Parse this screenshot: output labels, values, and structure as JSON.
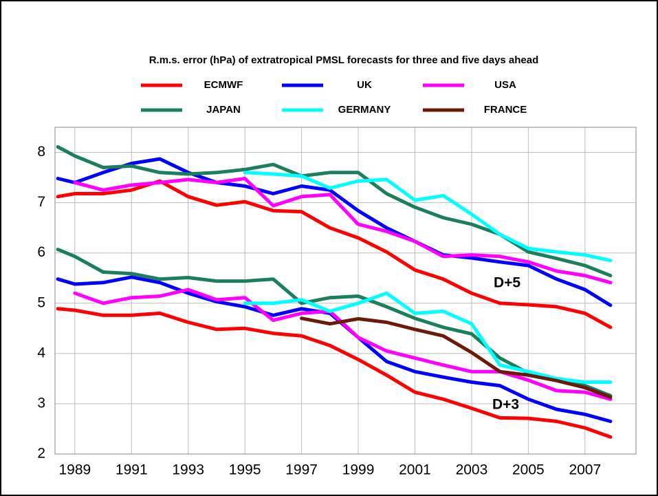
{
  "chart_data": {
    "type": "line",
    "title": "R.m.s. error (hPa) of extratropical PMSL forecasts for three and five days ahead",
    "annotations": [
      "D+5",
      "D+3"
    ],
    "x": [
      1988.4,
      1989,
      1990,
      1991,
      1992,
      1993,
      1994,
      1995,
      1996,
      1997,
      1998,
      1999,
      2000,
      2001,
      2002,
      2003,
      2004,
      2005,
      2006,
      2007,
      2007.9
    ],
    "xlim": [
      1988.3,
      2008.8
    ],
    "ylim": [
      2,
      8.5
    ],
    "xticks": [
      1989,
      1991,
      1993,
      1995,
      1997,
      1999,
      2001,
      2003,
      2005,
      2007
    ],
    "yticks": [
      2,
      3,
      4,
      5,
      6,
      7,
      8
    ],
    "grid": true,
    "series": [
      {
        "name": "ECMWF",
        "color": "#ff0000",
        "values": [
          [
            7.12,
            7.18,
            7.18,
            7.25,
            7.43,
            7.12,
            6.95,
            7.02,
            6.84,
            6.82,
            6.5,
            6.3,
            6.02,
            5.66,
            5.48,
            5.2,
            5.0,
            4.97,
            4.93,
            4.8,
            4.52
          ],
          [
            4.89,
            4.86,
            4.76,
            4.76,
            4.8,
            4.62,
            4.48,
            4.5,
            4.4,
            4.35,
            4.16,
            3.88,
            3.57,
            3.23,
            3.09,
            2.91,
            2.72,
            2.71,
            2.65,
            2.52,
            2.34
          ]
        ]
      },
      {
        "name": "UK",
        "color": "#0000ff",
        "values": [
          [
            7.48,
            7.4,
            7.6,
            7.78,
            7.87,
            7.6,
            7.4,
            7.33,
            7.18,
            7.33,
            7.25,
            6.84,
            6.5,
            6.23,
            5.96,
            5.9,
            5.82,
            5.75,
            5.48,
            5.27,
            4.96
          ],
          [
            5.48,
            5.38,
            5.41,
            5.52,
            5.41,
            5.2,
            5.03,
            4.93,
            4.76,
            4.89,
            4.8,
            4.32,
            3.84,
            3.64,
            3.53,
            3.43,
            3.36,
            3.09,
            2.89,
            2.79,
            2.65
          ]
        ]
      },
      {
        "name": "USA",
        "color": "#ff00ff",
        "values": [
          [
            null,
            7.4,
            7.25,
            7.35,
            7.4,
            7.46,
            7.4,
            7.48,
            6.94,
            7.12,
            7.16,
            6.57,
            6.43,
            6.23,
            5.93,
            5.96,
            5.93,
            5.82,
            5.64,
            5.55,
            5.41
          ],
          [
            null,
            5.2,
            5.0,
            5.11,
            5.14,
            5.27,
            5.07,
            5.11,
            4.66,
            4.8,
            4.84,
            4.32,
            4.05,
            3.91,
            3.77,
            3.64,
            3.64,
            3.47,
            3.26,
            3.23,
            3.09
          ]
        ]
      },
      {
        "name": "JAPAN",
        "color": "#1a7f5a",
        "values": [
          [
            8.11,
            7.93,
            7.7,
            7.73,
            7.6,
            7.57,
            7.6,
            7.66,
            7.76,
            7.53,
            7.6,
            7.6,
            7.18,
            6.91,
            6.7,
            6.57,
            6.37,
            6.02,
            5.89,
            5.75,
            5.55
          ],
          [
            6.07,
            5.93,
            5.62,
            5.59,
            5.48,
            5.51,
            5.44,
            5.44,
            5.48,
            5.0,
            5.11,
            5.14,
            4.93,
            4.7,
            4.52,
            4.39,
            3.91,
            3.61,
            3.5,
            3.36,
            3.16
          ]
        ]
      },
      {
        "name": "GERMANY",
        "color": "#00ffff",
        "values": [
          [
            null,
            null,
            null,
            null,
            null,
            null,
            null,
            7.6,
            7.57,
            7.53,
            7.29,
            7.43,
            7.46,
            7.05,
            7.14,
            6.77,
            6.37,
            6.09,
            6.02,
            5.96,
            5.85
          ],
          [
            null,
            null,
            null,
            null,
            null,
            null,
            null,
            5.0,
            5.0,
            5.07,
            4.84,
            5.0,
            5.2,
            4.8,
            4.84,
            4.59,
            3.77,
            3.64,
            3.5,
            3.43,
            3.43
          ]
        ]
      },
      {
        "name": "FRANCE",
        "color": "#6b1a0a",
        "values": [
          [
            null,
            null,
            null,
            null,
            null,
            null,
            null,
            null,
            null,
            null,
            null,
            null,
            null,
            null,
            null,
            null,
            null,
            null,
            null,
            null,
            null
          ],
          [
            null,
            null,
            null,
            null,
            null,
            null,
            null,
            null,
            null,
            4.7,
            4.59,
            4.69,
            4.62,
            4.48,
            4.35,
            4.02,
            3.64,
            3.57,
            3.46,
            3.32,
            3.13
          ]
        ]
      }
    ]
  }
}
